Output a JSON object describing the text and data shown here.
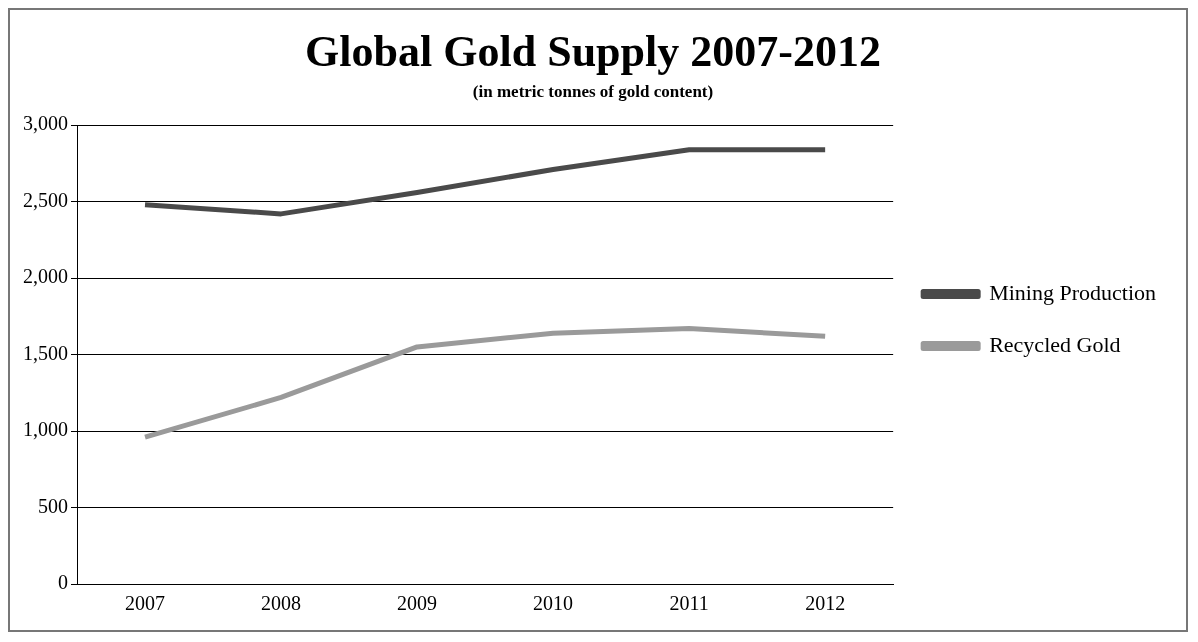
{
  "chart_data": {
    "type": "line",
    "title": "Global Gold Supply 2007-2012",
    "subtitle": "(in metric tonnes of gold content)",
    "categories": [
      "2007",
      "2008",
      "2009",
      "2010",
      "2011",
      "2012"
    ],
    "series": [
      {
        "name": "Mining Production",
        "color": "#4a4a4a",
        "values": [
          2480,
          2420,
          2560,
          2710,
          2840,
          2840
        ]
      },
      {
        "name": "Recycled Gold",
        "color": "#9a9a9a",
        "values": [
          960,
          1220,
          1550,
          1640,
          1670,
          1620
        ]
      }
    ],
    "ylim": [
      0,
      3000
    ],
    "yticks": [
      0,
      500,
      {
        "value": 1000,
        "label": "1,000"
      },
      {
        "value": 1500,
        "label": "1,500"
      },
      {
        "value": 2000,
        "label": "2,000"
      },
      {
        "value": 2500,
        "label": "2,500"
      },
      {
        "value": 3000,
        "label": "3,000"
      }
    ],
    "grid": "y",
    "legend": "right",
    "marker": "none",
    "line_style": "solid"
  }
}
